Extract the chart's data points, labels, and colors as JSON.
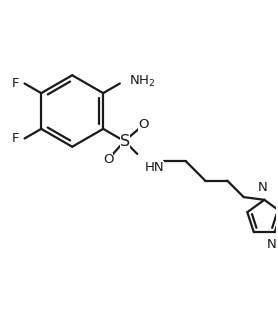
{
  "background_color": "#ffffff",
  "line_color": "#1a1a1a",
  "line_width": 1.6,
  "font_size": 9.5,
  "figsize": [
    2.78,
    3.21
  ],
  "dpi": 100,
  "xlim": [
    0.0,
    1.0
  ],
  "ylim": [
    0.0,
    1.0
  ]
}
